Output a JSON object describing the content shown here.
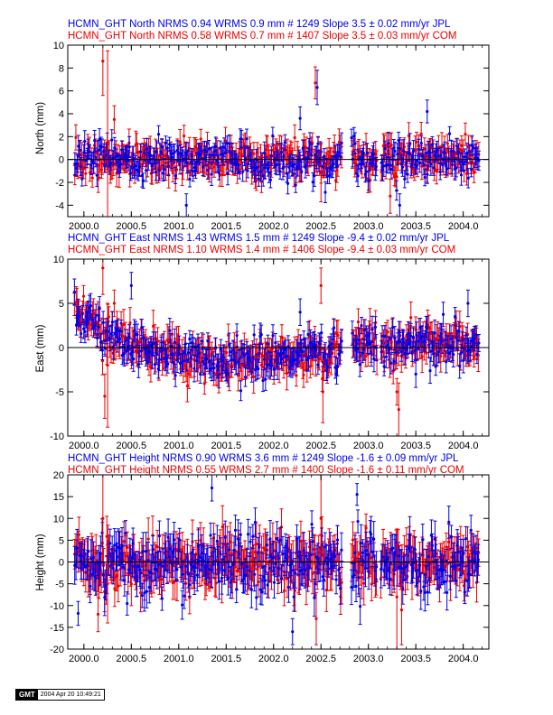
{
  "colors": {
    "jpl": "#0000ee",
    "com": "#ee0000",
    "axis": "#000000"
  },
  "stamp": {
    "logo": "GMT",
    "time": "2004 Apr 20 10:49:21"
  },
  "chart_data": [
    {
      "type": "scatter",
      "component": "North",
      "header_lines": [
        "HCMN_GHT North NRMS 0.94 WRMS  0.9 mm # 1249 Slope    3.5 ±  0.02 mm/yr JPL",
        "HCMN_GHT North NRMS 0.58 WRMS  0.7 mm # 1407 Slope    3.5 ±  0.03 mm/yr COM"
      ],
      "ylabel": "North (mm)",
      "xlim": [
        1999.83,
        2004.27
      ],
      "ylim": [
        -5,
        10
      ],
      "xticks": [
        "2000.0",
        "2000.5",
        "2001.0",
        "2001.5",
        "2002.0",
        "2002.5",
        "2003.0",
        "2003.5",
        "2004.0"
      ],
      "yticks": [
        "-4",
        "-2",
        "0",
        "2",
        "4",
        "6",
        "8",
        "10"
      ],
      "zero_line": true,
      "series": [
        {
          "name": "JPL",
          "points": 1249,
          "nrms": 0.94,
          "wrms_mm": 0.9,
          "slope_mm_yr": 3.5,
          "slope_sigma": 0.02,
          "noise_sd": 0.9,
          "err": 0.8
        },
        {
          "name": "COM",
          "points": 1407,
          "nrms": 0.58,
          "wrms_mm": 0.7,
          "slope_mm_yr": 3.5,
          "slope_sigma": 0.03,
          "noise_sd": 0.8,
          "err": 1.0
        }
      ],
      "outliers": [
        {
          "x": 2000.2,
          "y": 8.6,
          "err": 3.0,
          "series": "COM"
        },
        {
          "x": 2000.25,
          "y": 1.5,
          "err": 8.0,
          "series": "COM"
        },
        {
          "x": 2000.32,
          "y": 3.5,
          "err": 1.2,
          "series": "COM"
        },
        {
          "x": 2001.08,
          "y": -4.0,
          "err": 1.0,
          "series": "JPL"
        },
        {
          "x": 2002.28,
          "y": 3.6,
          "err": 1.0,
          "series": "JPL"
        },
        {
          "x": 2002.44,
          "y": 6.7,
          "err": 1.4,
          "series": "COM"
        },
        {
          "x": 2002.46,
          "y": 6.3,
          "err": 1.5,
          "series": "JPL"
        },
        {
          "x": 2002.5,
          "y": -1.2,
          "err": 2.5,
          "series": "COM"
        },
        {
          "x": 2003.23,
          "y": -3.2,
          "err": 1.5,
          "series": "COM"
        },
        {
          "x": 2003.33,
          "y": -4.0,
          "err": 1.0,
          "series": "JPL"
        },
        {
          "x": 2003.62,
          "y": 4.2,
          "err": 1.0,
          "series": "JPL"
        }
      ]
    },
    {
      "type": "scatter",
      "component": "East",
      "header_lines": [
        "HCMN_GHT East NRMS 1.43 WRMS  1.5 mm # 1249 Slope   -9.4 ±  0.02 mm/yr JPL",
        "HCMN_GHT East NRMS 1.10 WRMS  1.4 mm # 1406 Slope   -9.4 ±  0.03 mm/yr COM"
      ],
      "ylabel": "East (mm)",
      "xlim": [
        1999.83,
        2004.27
      ],
      "ylim": [
        -10,
        10
      ],
      "xticks": [
        "2000.0",
        "2000.5",
        "2001.0",
        "2001.5",
        "2002.0",
        "2002.5",
        "2003.0",
        "2003.5",
        "2004.0"
      ],
      "yticks": [
        "-10",
        "-5",
        "0",
        "5",
        "10"
      ],
      "zero_line": true,
      "series": [
        {
          "name": "JPL",
          "points": 1249,
          "nrms": 1.43,
          "wrms_mm": 1.5,
          "slope_mm_yr": -9.4,
          "slope_sigma": 0.02,
          "noise_sd": 1.2,
          "err": 1.2
        },
        {
          "name": "COM",
          "points": 1406,
          "nrms": 1.1,
          "wrms_mm": 1.4,
          "slope_mm_yr": -9.4,
          "slope_sigma": 0.03,
          "noise_sd": 1.1,
          "err": 1.5
        }
      ],
      "trend_knots": [
        [
          1999.9,
          4.5
        ],
        [
          2000.2,
          1.5
        ],
        [
          2000.5,
          0.2
        ],
        [
          2001.0,
          -1.0
        ],
        [
          2001.5,
          -1.4
        ],
        [
          2002.0,
          -1.0
        ],
        [
          2002.7,
          -0.5
        ],
        [
          2003.0,
          0.2
        ],
        [
          2003.5,
          0.4
        ],
        [
          2004.2,
          0.5
        ]
      ],
      "outliers": [
        {
          "x": 2000.2,
          "y": 9.0,
          "err": 3.0,
          "series": "COM"
        },
        {
          "x": 2000.25,
          "y": -2.0,
          "err": 7.0,
          "series": "COM"
        },
        {
          "x": 2000.22,
          "y": -5.5,
          "err": 2.5,
          "series": "COM"
        },
        {
          "x": 2000.32,
          "y": 5.0,
          "err": 1.5,
          "series": "COM"
        },
        {
          "x": 2000.5,
          "y": 7.0,
          "err": 1.5,
          "series": "JPL"
        },
        {
          "x": 2002.28,
          "y": 4.0,
          "err": 1.5,
          "series": "JPL"
        },
        {
          "x": 2002.5,
          "y": 7.0,
          "err": 2.0,
          "series": "COM"
        },
        {
          "x": 2002.52,
          "y": -5.0,
          "err": 3.5,
          "series": "COM"
        },
        {
          "x": 2003.3,
          "y": -5.0,
          "err": 1.5,
          "series": "COM"
        },
        {
          "x": 2003.32,
          "y": -7.0,
          "err": 3.0,
          "series": "COM"
        },
        {
          "x": 2003.5,
          "y": -3.0,
          "err": 1.5,
          "series": "JPL"
        },
        {
          "x": 2004.05,
          "y": 5.0,
          "err": 1.5,
          "series": "JPL"
        }
      ]
    },
    {
      "type": "scatter",
      "component": "Height",
      "header_lines": [
        "HCMN_GHT Height NRMS 0.90 WRMS  3.6 mm # 1249 Slope   -1.6 ±  0.09 mm/yr JPL",
        "HCMN_GHT Height NRMS 0.55 WRMS  2.7 mm # 1400 Slope   -1.6 ±  0.11 mm/yr COM"
      ],
      "ylabel": "Height (mm)",
      "xlim": [
        1999.83,
        2004.27
      ],
      "ylim": [
        -20,
        20
      ],
      "xticks": [
        "2000.0",
        "2000.5",
        "2001.0",
        "2001.5",
        "2002.0",
        "2002.5",
        "2003.0",
        "2003.5",
        "2004.0"
      ],
      "yticks": [
        "-20",
        "-15",
        "-10",
        "-5",
        "0",
        "5",
        "10",
        "15",
        "20"
      ],
      "zero_line": true,
      "series": [
        {
          "name": "JPL",
          "points": 1249,
          "nrms": 0.9,
          "wrms_mm": 3.6,
          "slope_mm_yr": -1.6,
          "slope_sigma": 0.09,
          "noise_sd": 3.6,
          "err": 3.5
        },
        {
          "name": "COM",
          "points": 1400,
          "nrms": 0.55,
          "wrms_mm": 2.7,
          "slope_mm_yr": -1.6,
          "slope_sigma": 0.11,
          "noise_sd": 3.0,
          "err": 4.0
        }
      ],
      "outliers": [
        {
          "x": 2000.2,
          "y": 10.0,
          "err": 10.0,
          "series": "COM"
        },
        {
          "x": 2000.25,
          "y": -5.0,
          "err": 9.0,
          "series": "COM"
        },
        {
          "x": 2000.15,
          "y": -12.0,
          "err": 4.0,
          "series": "COM"
        },
        {
          "x": 2001.35,
          "y": 17.0,
          "err": 3.0,
          "series": "JPL"
        },
        {
          "x": 2002.45,
          "y": -13.0,
          "err": 6.0,
          "series": "COM"
        },
        {
          "x": 2002.5,
          "y": 10.0,
          "err": 12.0,
          "series": "COM"
        },
        {
          "x": 2002.88,
          "y": 15.5,
          "err": 2.5,
          "series": "JPL"
        },
        {
          "x": 2003.3,
          "y": -8.0,
          "err": 12.0,
          "series": "COM"
        },
        {
          "x": 2003.35,
          "y": -11.0,
          "err": 8.0,
          "series": "COM"
        },
        {
          "x": 2002.2,
          "y": -16.0,
          "err": 3.0,
          "series": "JPL"
        }
      ]
    }
  ]
}
